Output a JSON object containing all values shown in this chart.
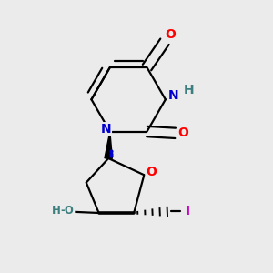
{
  "bg_color": "#ebebeb",
  "bond_color": "#000000",
  "N_color": "#0000cc",
  "O_color": "#ff0000",
  "HO_color": "#3d7f7f",
  "I_color": "#cc00cc",
  "line_width": 1.6,
  "figsize": [
    3.0,
    3.0
  ],
  "dpi": 100,
  "xlim": [
    0.08,
    0.92
  ],
  "ylim": [
    0.08,
    0.92
  ]
}
